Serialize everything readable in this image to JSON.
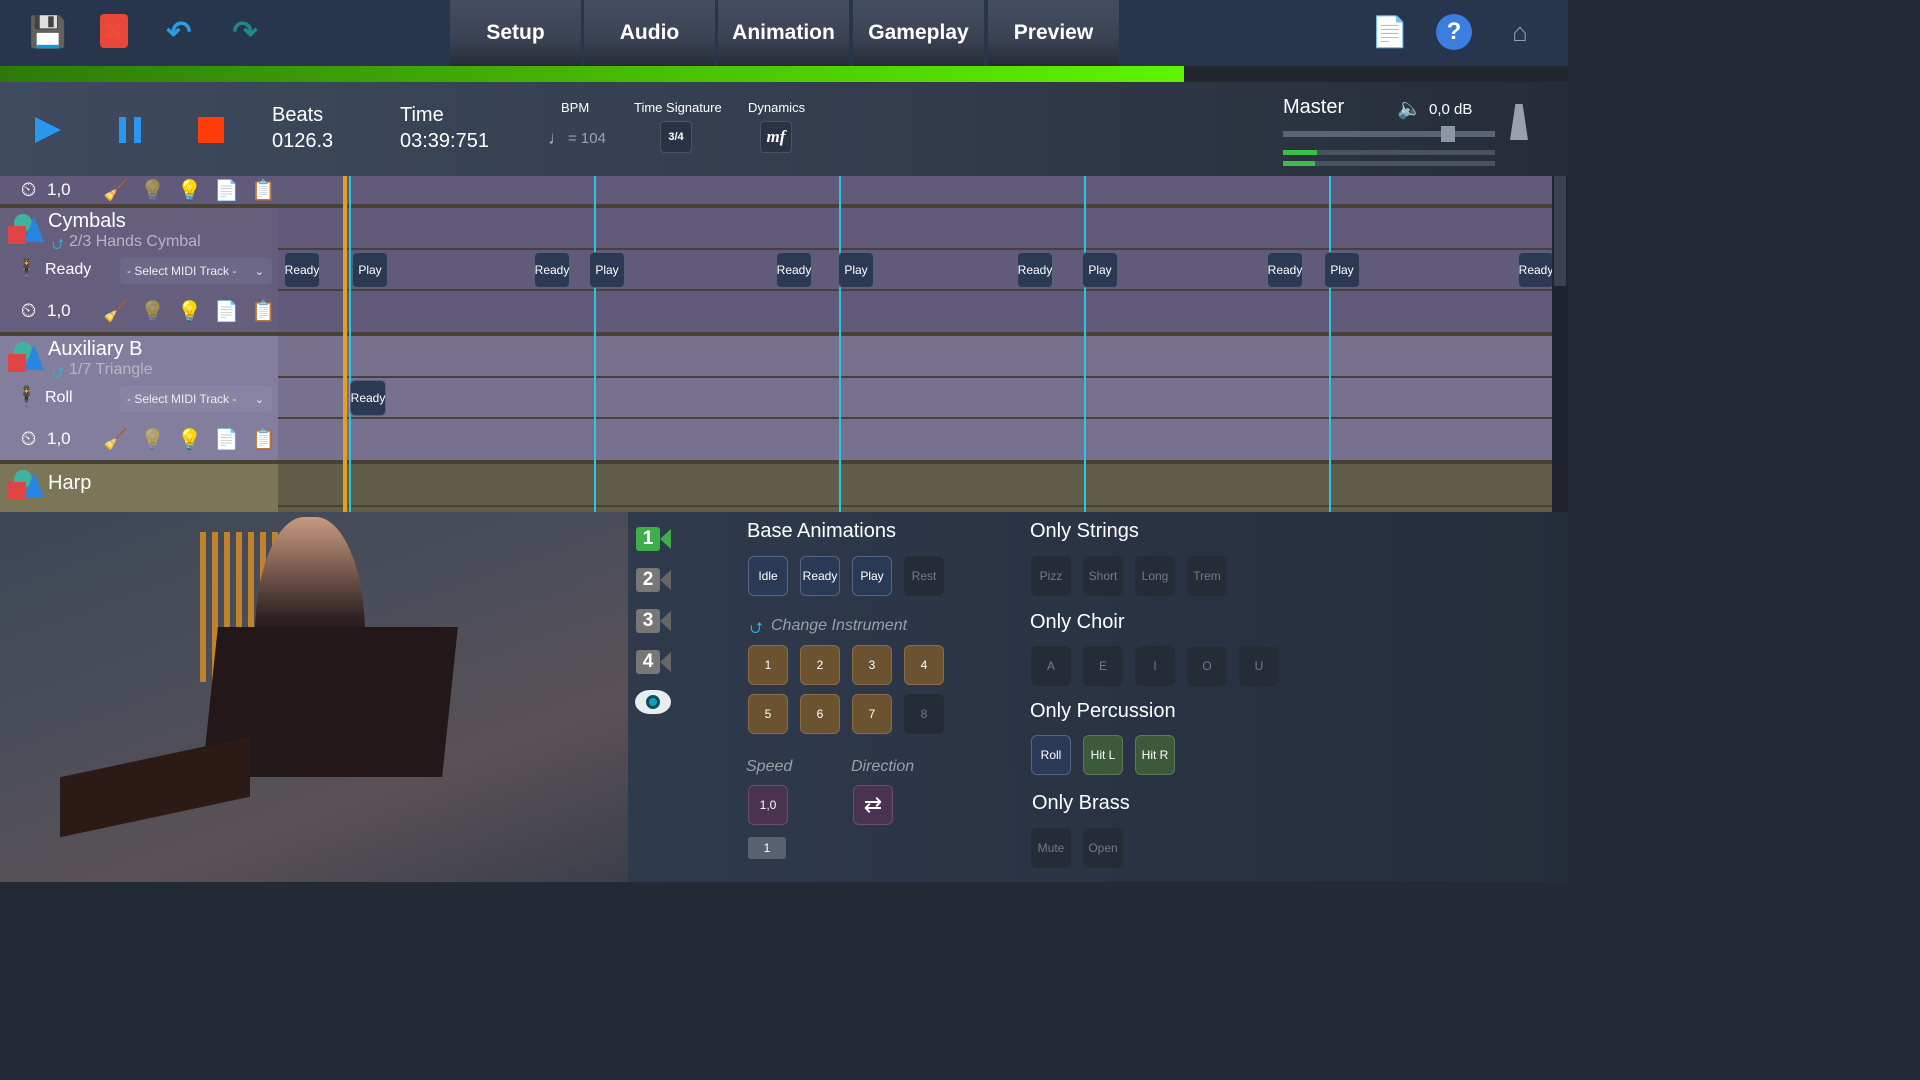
{
  "toolbar": {
    "icons": [
      "save-icon",
      "delete-icon",
      "undo-icon",
      "redo-icon"
    ],
    "right_icons": [
      "music-file-check-icon",
      "help-icon",
      "home-icon"
    ]
  },
  "tabs": [
    {
      "label": "Setup"
    },
    {
      "label": "Audio"
    },
    {
      "label": "Animation",
      "active": true
    },
    {
      "label": "Gameplay"
    },
    {
      "label": "Preview"
    }
  ],
  "progress": {
    "percent": 75.5,
    "color": "#5ef500"
  },
  "transport": {
    "beats_label": "Beats",
    "beats": "0126.3",
    "time_label": "Time",
    "time": "03:39:751",
    "bpm_label": "BPM",
    "bpm": "= 104",
    "ts_label": "Time Signature",
    "ts_value": "3/4",
    "dyn_label": "Dynamics",
    "dyn_value": "mf",
    "master_label": "Master",
    "master_db": "0,0 dB",
    "master_volume": 0.78
  },
  "tracks": [
    {
      "speed": "1,0"
    },
    {
      "name": "Cymbals",
      "instrument": "2/3 Hands Cymbal",
      "animation": "Ready",
      "midi": "- Select MIDI Track -",
      "speed": "1,0",
      "clips": [
        {
          "label": "Ready",
          "beat": "a"
        },
        {
          "label": "Play"
        },
        {
          "label": "Ready"
        },
        {
          "label": "Play"
        },
        {
          "label": "Ready"
        },
        {
          "label": "Play"
        },
        {
          "label": "Ready"
        },
        {
          "label": "Play"
        },
        {
          "label": "Ready"
        },
        {
          "label": "Play"
        },
        {
          "label": "Ready"
        }
      ]
    },
    {
      "name": "Auxiliary B",
      "instrument": "1/7 Triangle",
      "animation": "Roll",
      "midi": "- Select MIDI Track -",
      "speed": "1,0",
      "clips": [
        {
          "label": "Ready"
        }
      ]
    },
    {
      "name": "Harp"
    }
  ],
  "panel": {
    "cameras": [
      "1",
      "2",
      "3",
      "4"
    ],
    "base_title": "Base Animations",
    "base": [
      "Idle",
      "Ready",
      "Play",
      "Rest"
    ],
    "change_title": "Change Instrument",
    "instruments": [
      "1",
      "2",
      "3",
      "4",
      "5",
      "6",
      "7",
      "8"
    ],
    "speed_title": "Speed",
    "speed": "1,0",
    "speed_sub": "1",
    "direction_title": "Direction",
    "strings_title": "Only Strings",
    "strings": [
      "Pizz",
      "Short",
      "Long",
      "Trem"
    ],
    "choir_title": "Only Choir",
    "choir": [
      "A",
      "E",
      "I",
      "O",
      "U"
    ],
    "perc_title": "Only Percussion",
    "perc": [
      "Roll",
      "Hit L",
      "Hit R"
    ],
    "brass_title": "Only Brass",
    "brass": [
      "Mute",
      "Open"
    ]
  }
}
